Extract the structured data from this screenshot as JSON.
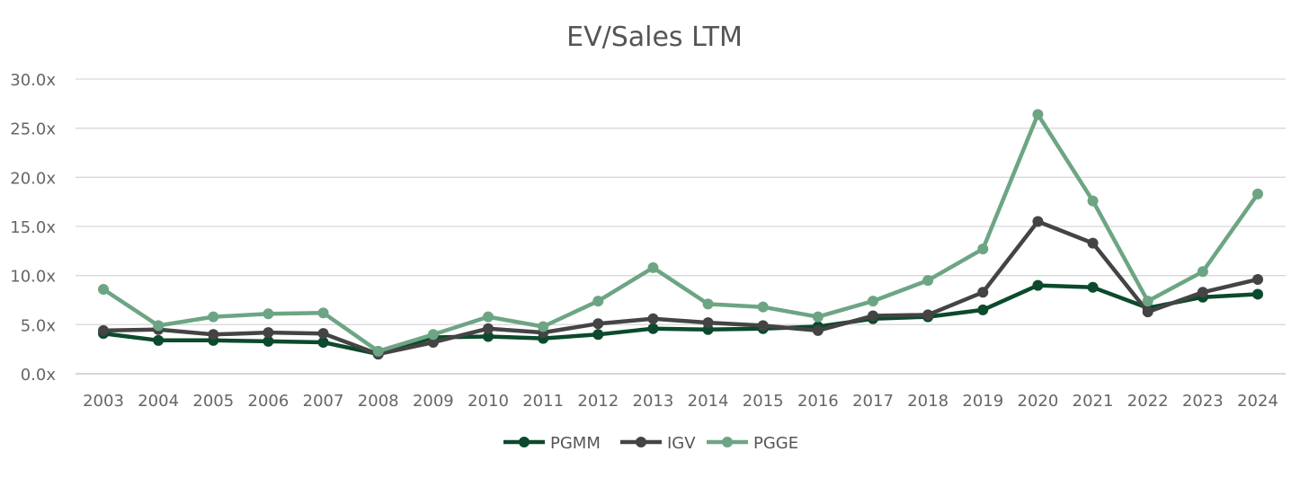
{
  "chart_data": {
    "type": "line",
    "title": "EV/Sales LTM",
    "xlabel": "",
    "ylabel": "",
    "x": [
      "2003",
      "2004",
      "2005",
      "2006",
      "2007",
      "2008",
      "2009",
      "2010",
      "2011",
      "2012",
      "2013",
      "2014",
      "2015",
      "2016",
      "2017",
      "2018",
      "2019",
      "2020",
      "2021",
      "2022",
      "2023",
      "2024"
    ],
    "ylim": [
      0,
      30
    ],
    "yticks": [
      0,
      5,
      10,
      15,
      20,
      25,
      30
    ],
    "ytick_labels": [
      "0.0x",
      "5.0x",
      "10.0x",
      "15.0x",
      "20.0x",
      "25.0x",
      "30.0x"
    ],
    "grid": true,
    "legend_position": "bottom-center",
    "series": [
      {
        "name": "PGMM",
        "color": "#0b4a2c",
        "values": [
          4.1,
          3.4,
          3.4,
          3.3,
          3.2,
          2.0,
          3.7,
          3.8,
          3.6,
          4.0,
          4.6,
          4.5,
          4.6,
          4.8,
          5.6,
          5.8,
          6.5,
          9.0,
          8.8,
          6.7,
          7.8,
          8.1
        ]
      },
      {
        "name": "IGV",
        "color": "#444444",
        "values": [
          4.4,
          4.5,
          4.0,
          4.2,
          4.1,
          2.0,
          3.2,
          4.6,
          4.2,
          5.1,
          5.6,
          5.2,
          4.9,
          4.4,
          5.9,
          6.0,
          8.3,
          15.5,
          13.3,
          6.3,
          8.3,
          9.6
        ]
      },
      {
        "name": "PGGE",
        "color": "#6da584",
        "values": [
          8.6,
          4.9,
          5.8,
          6.1,
          6.2,
          2.3,
          4.0,
          5.8,
          4.8,
          7.4,
          10.8,
          7.1,
          6.8,
          5.8,
          7.4,
          9.5,
          12.7,
          26.4,
          17.6,
          7.4,
          10.4,
          18.3
        ]
      }
    ]
  }
}
